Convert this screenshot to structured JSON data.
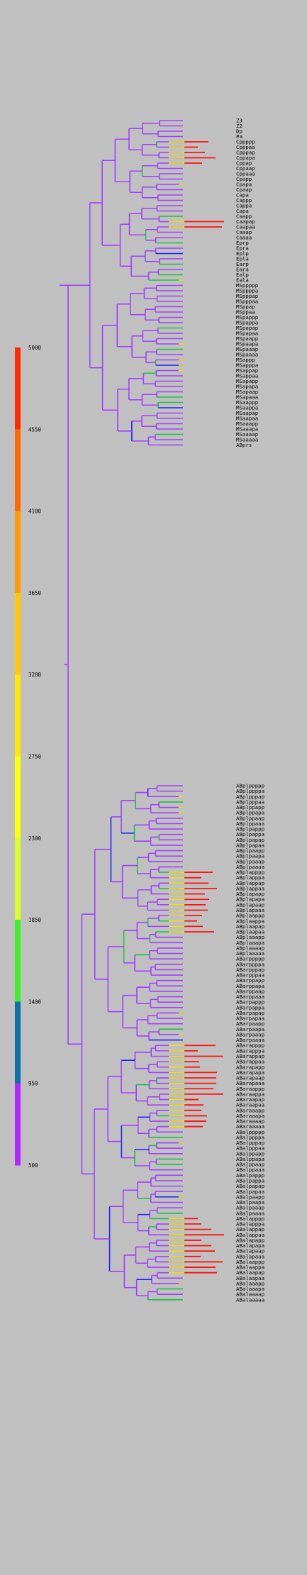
{
  "scale": {
    "ticks": [
      "5000",
      "4550",
      "4100",
      "3650",
      "3200",
      "2750",
      "2300",
      "1850",
      "1400",
      "950",
      "500"
    ],
    "colors": [
      "#ff2a00",
      "#ff6a00",
      "#ff9a00",
      "#ffc800",
      "#ffe800",
      "#ffff00",
      "#d8ff2a",
      "#3ff02a",
      "#0f6fa8",
      "#b227ff"
    ]
  },
  "colors": {
    "background": "#c0c0c0",
    "branch": "#a040ff",
    "accent_red": "#ff1010",
    "accent_yellow": "#f0e000",
    "accent_green": "#20c040",
    "accent_blue": "#2020ff"
  },
  "groups": [
    {
      "labels": [
        "Z3",
        "Z2",
        "Dp",
        "Pa",
        "Cppppp",
        "Cpppaa",
        "Cpppap",
        "Cppapa",
        "Cppap",
        "Cppaap",
        "Cppaaa",
        "Cpapp",
        "Cpapa",
        "Cpaap",
        "Capa",
        "Cappp",
        "Cappa",
        "Capa",
        "Caapp",
        "Caapap",
        "Caapaa",
        "Caaap",
        "Caaaa",
        "Eprp",
        "Epra",
        "Eplp",
        "Epla",
        "Earp",
        "Eara",
        "Ealp",
        "Eala",
        "MSppppp",
        "MSppppa",
        "MSpppap",
        "MSpppaa",
        "MSppap",
        "MSppaa",
        "MSpappp",
        "MSpappa",
        "MSpapap",
        "MSpapaa",
        "MSpaapp",
        "MSpaapa",
        "MSpaaap",
        "MSpaaaa",
        "MSappp",
        "MSapppa",
        "MSappap",
        "MSappaa",
        "MSapapp",
        "MSapapa",
        "MSapaap",
        "MSapaaa",
        "MSaappp",
        "MSaappa",
        "MSaapap",
        "MSaapaa",
        "MSaaapp",
        "MSaaapa",
        "MSaaaap",
        "MSaaaaa",
        "ABprs"
      ]
    },
    {
      "labels": [
        "ABplppppp",
        "ABplppppa",
        "ABplpppap",
        "ABplpppaa",
        "ABplppapp",
        "ABplppapa",
        "ABplppaap",
        "ABplppaaa",
        "ABplpappp",
        "ABplpappa",
        "ABplpapap",
        "ABplpapaa",
        "ABplpaapp",
        "ABplpaapa",
        "ABplpaaap",
        "ABplpaaaa",
        "ABplapppp",
        "ABplapppa",
        "ABplappap",
        "ABplappaa",
        "ABplapapp",
        "ABplapapa",
        "ABplapaap",
        "ABplapaaa",
        "ABplaappp",
        "ABplaappa",
        "ABplaapap",
        "ABplaapaa",
        "ABplaaapp",
        "ABplaaapa",
        "ABplaaaap",
        "ABplaaaaa",
        "ABarppppp",
        "ABarppppa",
        "ABarpppap",
        "ABarpppaa",
        "ABarppapp",
        "ABarppapa",
        "ABarppaap",
        "ABarppaaa",
        "ABarpappp",
        "ABarpappa",
        "ABarpapap",
        "ABarpapaa",
        "ABarpaapp",
        "ABarpaapa",
        "ABarpaaap",
        "ABarpaaaa",
        "ABarapppp",
        "ABarapppa",
        "ABarappap",
        "ABarappaa",
        "ABarapapp",
        "ABarapapa",
        "ABarapaap",
        "ABarapaaa",
        "ABaraappp",
        "ABaraappa",
        "ABaraapap",
        "ABaraapaa",
        "ABaraaapp",
        "ABaraaapa",
        "ABaraaaap",
        "ABaraaaaa",
        "ABalppppp",
        "ABalppppa",
        "ABalpppap",
        "ABalpppaa",
        "ABalppapp",
        "ABalppapa",
        "ABalppaap",
        "ABalppaaa",
        "ABalpappp",
        "ABalpappa",
        "ABalpapap",
        "ABalpapaa",
        "ABalpaapp",
        "ABalpaapa",
        "ABalpaaap",
        "ABalpaaaa",
        "ABalapppp",
        "ABalapppa",
        "ABalappap",
        "ABalappaa",
        "ABalapapp",
        "ABalapapa",
        "ABalapaap",
        "ABalapaaa",
        "ABalaappp",
        "ABalaappa",
        "ABalaapap",
        "ABalaapaa",
        "ABalaaapp",
        "ABalaaapa",
        "ABalaaaap",
        "ABalaaaaa"
      ]
    }
  ]
}
